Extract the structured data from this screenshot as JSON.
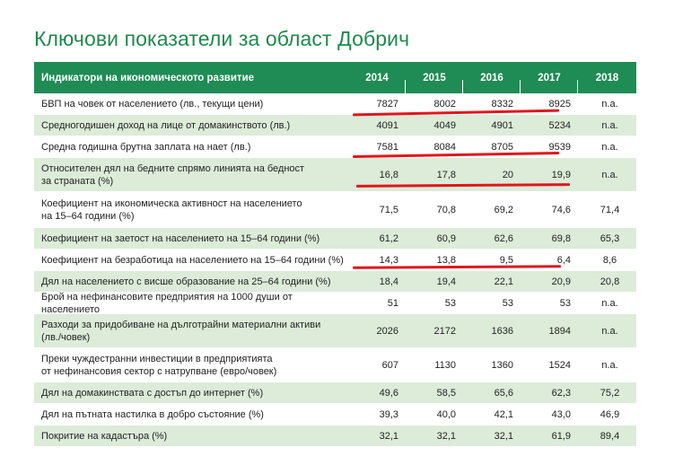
{
  "title": "Ключови показатели за област Добрич",
  "header": {
    "label": "Индикатори на икономическото развитие",
    "years": [
      "2014",
      "2015",
      "2016",
      "2017",
      "2018"
    ]
  },
  "rows": [
    {
      "label": "БВП на човек от населението (лв., текущи цени)",
      "values": [
        "7827",
        "8002",
        "8332",
        "8925",
        "n.a."
      ]
    },
    {
      "label": "Средногодишен доход на лице от домакинството (лв.)",
      "values": [
        "4091",
        "4049",
        "4901",
        "5234",
        "n.a."
      ]
    },
    {
      "label": "Средна годишна брутна заплата на нает (лв.)",
      "values": [
        "7581",
        "8084",
        "8705",
        "9539",
        "n.a."
      ]
    },
    {
      "label": "Относителен дял на бедните спрямо линията на бедност\nза страната (%)",
      "values": [
        "16,8",
        "17,8",
        "20",
        "19,9",
        "n.a."
      ]
    },
    {
      "label": "Коефициент на икономическа активност на населението\nна 15–64 години (%)",
      "values": [
        "71,5",
        "70,8",
        "69,2",
        "74,6",
        "71,4"
      ]
    },
    {
      "label": "Коефициент на заетост на населението на 15–64 години (%)",
      "values": [
        "61,2",
        "60,9",
        "62,6",
        "69,8",
        "65,3"
      ]
    },
    {
      "label": "Коефициент на безработица на населението на 15–64 години (%)",
      "values": [
        "14,3",
        "13,8",
        "9,5",
        "6,4",
        "8,6"
      ]
    },
    {
      "label": "Дял на населението с висше образование на 25–64 години (%)",
      "values": [
        "18,4",
        "19,4",
        "22,1",
        "20,9",
        "20,8"
      ]
    },
    {
      "label": "Брой на нефинансовите предприятия на 1000 души от населението",
      "values": [
        "51",
        "53",
        "53",
        "53",
        "n.a."
      ]
    },
    {
      "label": "Разходи за придобиване на дълготрайни материални активи\n(лв./човек)",
      "values": [
        "2026",
        "2172",
        "1636",
        "1894",
        "n.a."
      ]
    },
    {
      "label": "Преки чуждестранни инвестиции в предприятията\nот нефинансовия сектор с натрупване (евро/човек)",
      "values": [
        "607",
        "1130",
        "1360",
        "1524",
        "n.a."
      ]
    },
    {
      "label": "Дял на домакинствата с достъп до интернет (%)",
      "values": [
        "49,6",
        "58,5",
        "65,6",
        "62,3",
        "75,2"
      ]
    },
    {
      "label": "Дял на пътната настилка в добро състояние (%)",
      "values": [
        "39,3",
        "40,0",
        "42,1",
        "43,0",
        "46,9"
      ]
    },
    {
      "label": "Покритие на кадастъра (%)",
      "values": [
        "32,1",
        "32,1",
        "32,1",
        "61,9",
        "89,4"
      ]
    }
  ],
  "colors": {
    "title": "#1f8a4c",
    "header_bg": "#1e8c54",
    "row_shade": "#dcecd9",
    "underline": "#e0171d"
  }
}
